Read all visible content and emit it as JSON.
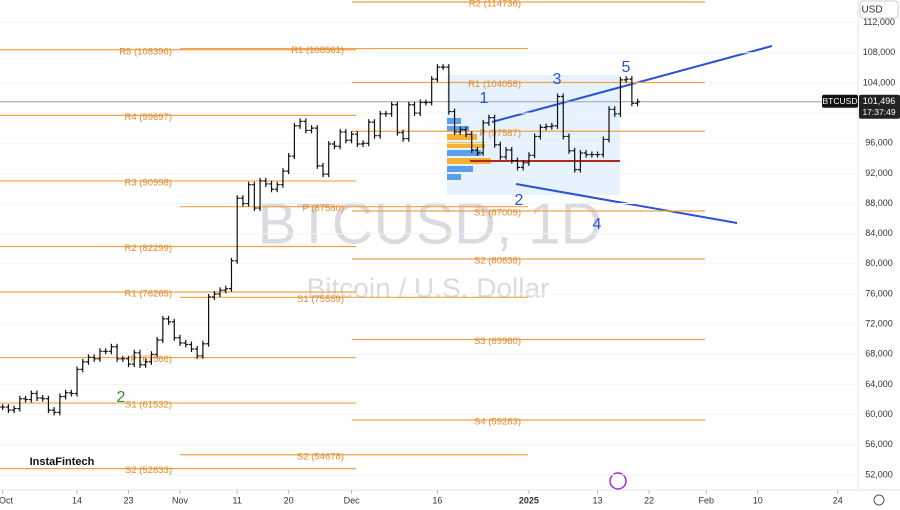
{
  "chart_data": {
    "type": "ohlc",
    "symbol_tag": "BTCUSD",
    "currency": "USD",
    "last_price": 101496,
    "last_price_label": "101,496",
    "countdown": "17:37:49",
    "watermark": "BTCUSD, 1D",
    "watermark_sub": "Bitcoin / U.S. Dollar",
    "brand": "InstaFintech",
    "wave_labels": [
      "1",
      "2",
      "3",
      "4",
      "5"
    ],
    "green_label": "2",
    "color": "#111111",
    "ylim": [
      50000,
      115000
    ],
    "yticks": [
      {
        "value": 52000,
        "label": "52,000"
      },
      {
        "value": 56000,
        "label": "56,000"
      },
      {
        "value": 60000,
        "label": "60,000"
      },
      {
        "value": 64000,
        "label": "64,000"
      },
      {
        "value": 68000,
        "label": "68,000"
      },
      {
        "value": 72000,
        "label": "72,000"
      },
      {
        "value": 76000,
        "label": "76,000"
      },
      {
        "value": 80000,
        "label": "80,000"
      },
      {
        "value": 84000,
        "label": "84,000"
      },
      {
        "value": 88000,
        "label": "88,000"
      },
      {
        "value": 92000,
        "label": "92,000"
      },
      {
        "value": 96000,
        "label": "96,000"
      },
      {
        "value": 100000,
        "label": "100,000"
      },
      {
        "value": 104000,
        "label": "104,000"
      },
      {
        "value": 108000,
        "label": "108,000"
      },
      {
        "value": 112000,
        "label": "112,000"
      }
    ],
    "xticks": [
      {
        "value": "Oct 1",
        "label": "Oct"
      },
      {
        "value": "Oct 14",
        "label": "14"
      },
      {
        "value": "Oct 23",
        "label": "23"
      },
      {
        "value": "Nov 1",
        "label": "Nov"
      },
      {
        "value": "Nov 11",
        "label": "11"
      },
      {
        "value": "Nov 20",
        "label": "20"
      },
      {
        "value": "Dec 1",
        "label": "Dec"
      },
      {
        "value": "Dec 16",
        "label": "16"
      },
      {
        "value": "Jan 1",
        "label": "2025"
      },
      {
        "value": "Jan 13",
        "label": "13"
      },
      {
        "value": "Jan 22",
        "label": "22"
      },
      {
        "value": "Feb 1",
        "label": "Feb"
      },
      {
        "value": "Feb 10",
        "label": "10"
      },
      {
        "value": "Feb 24",
        "label": "24"
      }
    ],
    "pivot_groups": [
      {
        "levels": [
          {
            "label": "R5 (108396)",
            "value": 108396
          },
          {
            "label": "R4 (99697)",
            "value": 99697
          },
          {
            "label": "R3 (90998)",
            "value": 90998
          },
          {
            "label": "R2 (82299)",
            "value": 82299
          },
          {
            "label": "R1 (76265)",
            "value": 76265
          },
          {
            "label": "P (67566)",
            "value": 67566
          },
          {
            "label": "S1 (61532)",
            "value": 61532
          },
          {
            "label": "S2 (52833)",
            "value": 52833
          }
        ]
      },
      {
        "levels": [
          {
            "label": "R1 (108561)",
            "value": 108561
          },
          {
            "label": "P (87580)",
            "value": 87580
          },
          {
            "label": "S1 (75559)",
            "value": 75559
          },
          {
            "label": "S2 (54678)",
            "value": 54678
          }
        ]
      },
      {
        "levels": [
          {
            "label": "R2 (114736)",
            "value": 114736
          },
          {
            "label": "R1 (104058)",
            "value": 104058
          },
          {
            "label": "P (97587)",
            "value": 97587
          },
          {
            "label": "S1 (87009)",
            "value": 87009
          },
          {
            "label": "S2 (80638)",
            "value": 80638
          },
          {
            "label": "S3 (69960)",
            "value": 69960
          },
          {
            "label": "S4 (59283)",
            "value": 59283
          }
        ]
      }
    ],
    "categories": [
      "Oct 1",
      "Oct 2",
      "Oct 3",
      "Oct 4",
      "Oct 5",
      "Oct 6",
      "Oct 7",
      "Oct 8",
      "Oct 9",
      "Oct 10",
      "Oct 11",
      "Oct 12",
      "Oct 13",
      "Oct 14",
      "Oct 15",
      "Oct 16",
      "Oct 17",
      "Oct 18",
      "Oct 19",
      "Oct 20",
      "Oct 21",
      "Oct 22",
      "Oct 23",
      "Oct 24",
      "Oct 25",
      "Oct 26",
      "Oct 27",
      "Oct 28",
      "Oct 29",
      "Oct 30",
      "Oct 31",
      "Nov 1",
      "Nov 2",
      "Nov 3",
      "Nov 4",
      "Nov 5",
      "Nov 6",
      "Nov 7",
      "Nov 8",
      "Nov 9",
      "Nov 10",
      "Nov 11",
      "Nov 12",
      "Nov 13",
      "Nov 14",
      "Nov 15",
      "Nov 16",
      "Nov 17",
      "Nov 18",
      "Nov 19",
      "Nov 20",
      "Nov 21",
      "Nov 22",
      "Nov 23",
      "Nov 24",
      "Nov 25",
      "Nov 26",
      "Nov 27",
      "Nov 28",
      "Nov 29",
      "Nov 30",
      "Dec 1",
      "Dec 2",
      "Dec 3",
      "Dec 4",
      "Dec 5",
      "Dec 6",
      "Dec 7",
      "Dec 8",
      "Dec 9",
      "Dec 10",
      "Dec 11",
      "Dec 12",
      "Dec 13",
      "Dec 14",
      "Dec 15",
      "Dec 16",
      "Dec 17",
      "Dec 18",
      "Dec 19",
      "Dec 20",
      "Dec 21",
      "Dec 22",
      "Dec 23",
      "Dec 24",
      "Dec 25",
      "Dec 26",
      "Dec 27",
      "Dec 28",
      "Dec 29",
      "Dec 30",
      "Dec 31",
      "Jan 1",
      "Jan 2",
      "Jan 3",
      "Jan 4",
      "Jan 5",
      "Jan 6",
      "Jan 7",
      "Jan 8",
      "Jan 9",
      "Jan 10",
      "Jan 11",
      "Jan 12",
      "Jan 13",
      "Jan 14",
      "Jan 15",
      "Jan 16",
      "Jan 17",
      "Jan 18",
      "Jan 19",
      "Jan 20"
    ],
    "values": [
      61000,
      60600,
      60800,
      62100,
      62000,
      62800,
      62200,
      62100,
      60600,
      60300,
      62400,
      62900,
      62800,
      66000,
      67000,
      67600,
      67400,
      68400,
      68400,
      69000,
      67400,
      67400,
      66700,
      68200,
      66600,
      67000,
      68000,
      69900,
      72700,
      72300,
      70200,
      69500,
      69300,
      68700,
      67800,
      69400,
      75600,
      76000,
      76500,
      76700,
      80400,
      88700,
      88000,
      90500,
      87400,
      91000,
      90600,
      89900,
      90500,
      92300,
      94300,
      98300,
      98900,
      97700,
      98000,
      93000,
      91900,
      95900,
      95600,
      97500,
      96400,
      97200,
      95900,
      96000,
      98800,
      97000,
      99900,
      99900,
      101100,
      97400,
      96600,
      101100,
      100000,
      101400,
      101400,
      104500,
      106100,
      106100,
      100200,
      97500,
      97800,
      97200,
      95100,
      94700,
      98700,
      99400,
      95800,
      94200,
      95100,
      93700,
      92800,
      93400,
      94400,
      96900,
      98100,
      98200,
      98300,
      102200,
      96900,
      95000,
      92500,
      94700,
      94500,
      94500,
      94500,
      96500,
      100500,
      99900,
      104400,
      104500,
      101300,
      101500
    ]
  }
}
